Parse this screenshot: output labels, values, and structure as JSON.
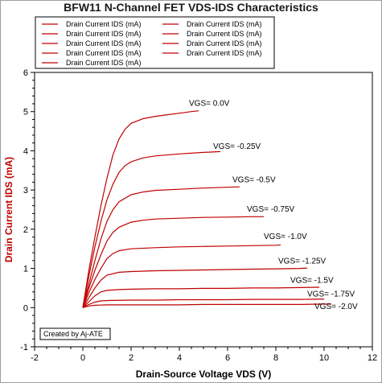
{
  "chart_data": {
    "type": "line",
    "title": "BFW11 N-Channel FET VDS-IDS Characteristics",
    "xlabel": "Drain-Source Voltage VDS (V)",
    "ylabel": "Drain Current IDS (mA)",
    "xlim": [
      -2,
      12
    ],
    "ylim": [
      -1,
      6
    ],
    "x_ticks": [
      "-2",
      "0",
      "2",
      "4",
      "6",
      "8",
      "10",
      "12"
    ],
    "y_ticks": [
      "-1",
      "0",
      "1",
      "2",
      "3",
      "4",
      "5",
      "6"
    ],
    "grid": false,
    "legend_placement": "top-left",
    "credit": "Created by Aj-ATE",
    "line_color": "#c00000",
    "series": [
      {
        "name": "Drain Current IDS (mA)",
        "annotation": "VGS=  0.0V",
        "x": [
          0,
          0.25,
          0.5,
          0.75,
          1,
          1.25,
          1.5,
          1.75,
          2,
          2.5,
          3,
          3.5,
          4,
          4.5,
          4.8
        ],
        "y": [
          0,
          0.95,
          1.8,
          2.6,
          3.3,
          3.9,
          4.3,
          4.55,
          4.7,
          4.82,
          4.88,
          4.92,
          4.96,
          5.0,
          5.02
        ]
      },
      {
        "name": "Drain Current IDS (mA)",
        "annotation": "VGS=  -0.25V",
        "x": [
          0,
          0.25,
          0.5,
          0.75,
          1,
          1.25,
          1.5,
          1.75,
          2,
          2.5,
          3,
          4,
          5,
          5.7
        ],
        "y": [
          0,
          0.8,
          1.55,
          2.2,
          2.75,
          3.15,
          3.45,
          3.62,
          3.72,
          3.82,
          3.87,
          3.92,
          3.96,
          3.98
        ]
      },
      {
        "name": "Drain Current IDS (mA)",
        "annotation": "VGS=  -0.5V",
        "x": [
          0,
          0.25,
          0.5,
          0.75,
          1,
          1.25,
          1.5,
          2,
          2.5,
          3,
          4,
          5,
          6,
          6.5
        ],
        "y": [
          0,
          0.6,
          1.2,
          1.75,
          2.2,
          2.5,
          2.7,
          2.88,
          2.95,
          2.99,
          3.02,
          3.05,
          3.07,
          3.08
        ]
      },
      {
        "name": "Drain Current IDS (mA)",
        "annotation": "VGS=  -0.75V",
        "x": [
          0,
          0.25,
          0.5,
          0.75,
          1,
          1.25,
          1.5,
          2,
          2.5,
          3,
          4,
          5,
          6,
          7,
          7.5
        ],
        "y": [
          0,
          0.5,
          0.95,
          1.35,
          1.7,
          1.92,
          2.05,
          2.18,
          2.23,
          2.26,
          2.28,
          2.3,
          2.31,
          2.32,
          2.32
        ]
      },
      {
        "name": "Drain Current IDS (mA)",
        "annotation": "VGS=  -1.0V",
        "x": [
          0,
          0.25,
          0.5,
          0.75,
          1,
          1.25,
          1.5,
          2,
          3,
          4,
          5,
          6,
          7,
          8,
          8.2
        ],
        "y": [
          0,
          0.38,
          0.72,
          1.0,
          1.25,
          1.38,
          1.45,
          1.5,
          1.53,
          1.55,
          1.56,
          1.57,
          1.58,
          1.59,
          1.6
        ]
      },
      {
        "name": "Drain Current IDS (mA)",
        "annotation": "VGS=  -1.25V",
        "x": [
          0,
          0.25,
          0.5,
          0.75,
          1,
          1.5,
          2,
          3,
          4,
          5,
          6,
          7,
          8,
          9,
          9.3
        ],
        "y": [
          0,
          0.25,
          0.5,
          0.7,
          0.83,
          0.9,
          0.92,
          0.94,
          0.95,
          0.96,
          0.97,
          0.98,
          0.99,
          1.0,
          1.01
        ]
      },
      {
        "name": "Drain Current IDS (mA)",
        "annotation": "VGS=  -1.5V",
        "x": [
          0,
          0.25,
          0.5,
          0.75,
          1,
          1.5,
          2,
          3,
          4,
          5,
          6,
          7,
          8,
          9,
          9.8
        ],
        "y": [
          0,
          0.15,
          0.3,
          0.4,
          0.44,
          0.46,
          0.47,
          0.48,
          0.48,
          0.49,
          0.49,
          0.5,
          0.5,
          0.51,
          0.52
        ]
      },
      {
        "name": "Drain Current IDS (mA)",
        "annotation": "VGS=  -1.75V",
        "x": [
          0,
          0.25,
          0.5,
          0.75,
          1,
          2,
          3,
          4,
          5,
          6,
          7,
          8,
          9,
          10
        ],
        "y": [
          0,
          0.08,
          0.14,
          0.17,
          0.18,
          0.19,
          0.19,
          0.2,
          0.2,
          0.2,
          0.21,
          0.21,
          0.21,
          0.22
        ]
      },
      {
        "name": "Drain Current IDS (mA)",
        "annotation": "VGS=  -2.0V",
        "x": [
          0,
          0.25,
          0.5,
          1,
          2,
          3,
          4,
          5,
          6,
          7,
          8,
          9,
          10,
          10.3
        ],
        "y": [
          0,
          0.04,
          0.06,
          0.07,
          0.07,
          0.07,
          0.07,
          0.08,
          0.08,
          0.08,
          0.08,
          0.08,
          0.09,
          0.09
        ]
      }
    ]
  }
}
